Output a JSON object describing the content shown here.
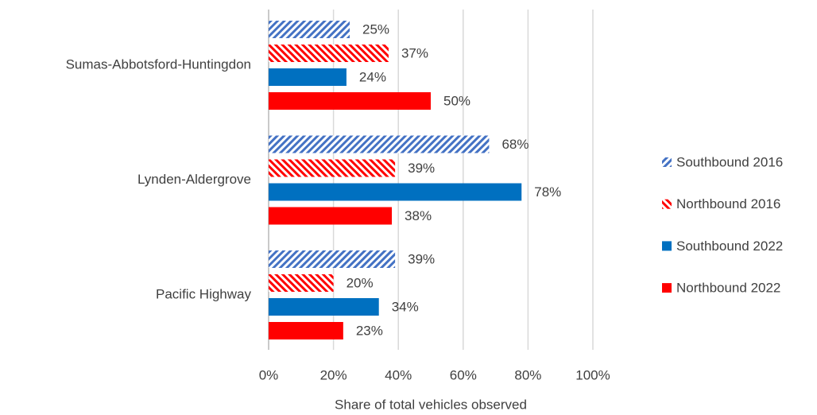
{
  "chart_data": {
    "type": "bar",
    "orientation": "horizontal",
    "xlabel": "Share of total vehicles observed",
    "categories": [
      "Sumas-Abbotsford-Huntingdon",
      "Lynden-Aldergrove",
      "Pacific Highway"
    ],
    "series": [
      {
        "name": "Southbound 2016",
        "color": "#4472c4",
        "hatch": "up",
        "values": [
          25,
          68,
          39
        ],
        "value_labels": [
          "25%",
          "68%",
          "39%"
        ]
      },
      {
        "name": "Northbound 2016",
        "color": "#ff0000",
        "hatch": "down",
        "values": [
          37,
          39,
          20
        ],
        "value_labels": [
          "37%",
          "39%",
          "20%"
        ]
      },
      {
        "name": "Southbound 2022",
        "color": "#0070c0",
        "values": [
          24,
          78,
          34
        ],
        "value_labels": [
          "24%",
          "78%",
          "34%"
        ]
      },
      {
        "name": "Northbound 2022",
        "color": "#ff0000",
        "values": [
          50,
          38,
          23
        ],
        "value_labels": [
          "50%",
          "38%",
          "23%"
        ]
      }
    ],
    "xlim": [
      0,
      100
    ],
    "xticks": [
      {
        "value": 0,
        "label": "0%"
      },
      {
        "value": 20,
        "label": "20%"
      },
      {
        "value": 40,
        "label": "40%"
      },
      {
        "value": 60,
        "label": "60%"
      },
      {
        "value": 80,
        "label": "80%"
      },
      {
        "value": 100,
        "label": "100%"
      }
    ],
    "grid": true,
    "legend": "right"
  }
}
